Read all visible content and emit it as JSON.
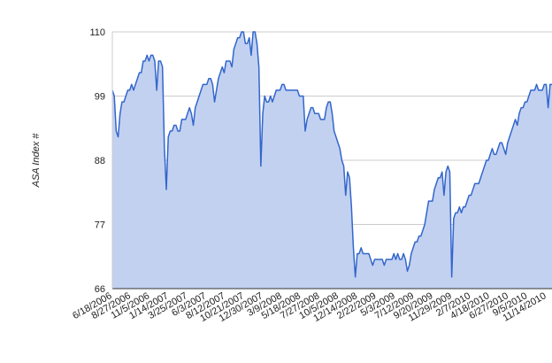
{
  "chart_data": {
    "type": "area",
    "ylabel": "ASA Index #",
    "xlabel": "",
    "ylim": [
      66,
      110
    ],
    "yticks": [
      66,
      77,
      88,
      99,
      110
    ],
    "grid": true,
    "x_tick_labels": [
      "6/18/2006",
      "8/27/2006",
      "11/5/2006",
      "1/14/2007",
      "3/25/2007",
      "6/3/2007",
      "8/12/2007",
      "10/21/2007",
      "12/30/2007",
      "3/9/2008",
      "5/18/2008",
      "7/27/2008",
      "10/5/2008",
      "12/14/2008",
      "2/22/2009",
      "5/3/2009",
      "7/12/2009",
      "9/20/2009",
      "11/29/2009",
      "2/7/2010",
      "4/18/2010",
      "6/27/2010",
      "9/5/2010",
      "11/14/2010"
    ],
    "colors": {
      "line": "#3366cc",
      "fill": "#c2d1f0"
    },
    "series": [
      {
        "values": [
          100,
          99,
          93,
          92,
          96,
          98,
          98,
          99,
          100,
          100,
          101,
          100,
          101,
          102,
          103,
          103,
          105,
          105,
          106,
          105,
          106,
          106,
          105,
          100,
          105,
          105,
          104,
          90,
          83,
          92,
          93,
          93,
          94,
          94,
          93,
          93,
          95,
          95,
          95,
          96,
          97,
          96,
          94,
          97,
          98,
          99,
          100,
          101,
          101,
          101,
          102,
          102,
          101,
          98,
          100,
          102,
          103,
          104,
          103,
          105,
          105,
          105,
          104,
          107,
          108,
          109,
          109,
          110,
          110,
          108,
          108,
          109,
          106,
          110,
          110,
          108,
          104,
          87,
          96,
          99,
          98,
          98,
          99,
          98,
          99,
          100,
          100,
          100,
          101,
          101,
          100,
          100,
          100,
          100,
          100,
          100,
          100,
          99,
          99,
          99,
          93,
          95,
          96,
          97,
          97,
          96,
          96,
          96,
          95,
          95,
          95,
          97,
          98,
          98,
          96,
          93,
          92,
          91,
          90,
          88,
          87,
          82,
          86,
          85,
          80,
          73,
          68,
          72,
          72,
          73,
          72,
          72,
          72,
          72,
          71,
          70,
          71,
          71,
          71,
          71,
          71,
          70,
          71,
          71,
          71,
          71,
          72,
          71,
          72,
          71,
          71,
          72,
          71,
          69,
          70,
          72,
          73,
          74,
          74,
          75,
          75,
          76,
          77,
          79,
          81,
          81,
          81,
          83,
          84,
          85,
          85,
          86,
          82,
          86,
          87,
          86,
          68,
          78,
          79,
          79,
          80,
          79,
          80,
          80,
          81,
          82,
          82,
          83,
          84,
          84,
          84,
          85,
          86,
          87,
          88,
          88,
          89,
          90,
          89,
          89,
          90,
          91,
          91,
          90,
          89,
          91,
          92,
          93,
          94,
          95,
          94,
          96,
          97,
          97,
          98,
          98,
          99,
          100,
          100,
          100,
          101,
          100,
          100,
          100,
          101,
          101,
          97,
          101,
          101
        ]
      }
    ]
  }
}
